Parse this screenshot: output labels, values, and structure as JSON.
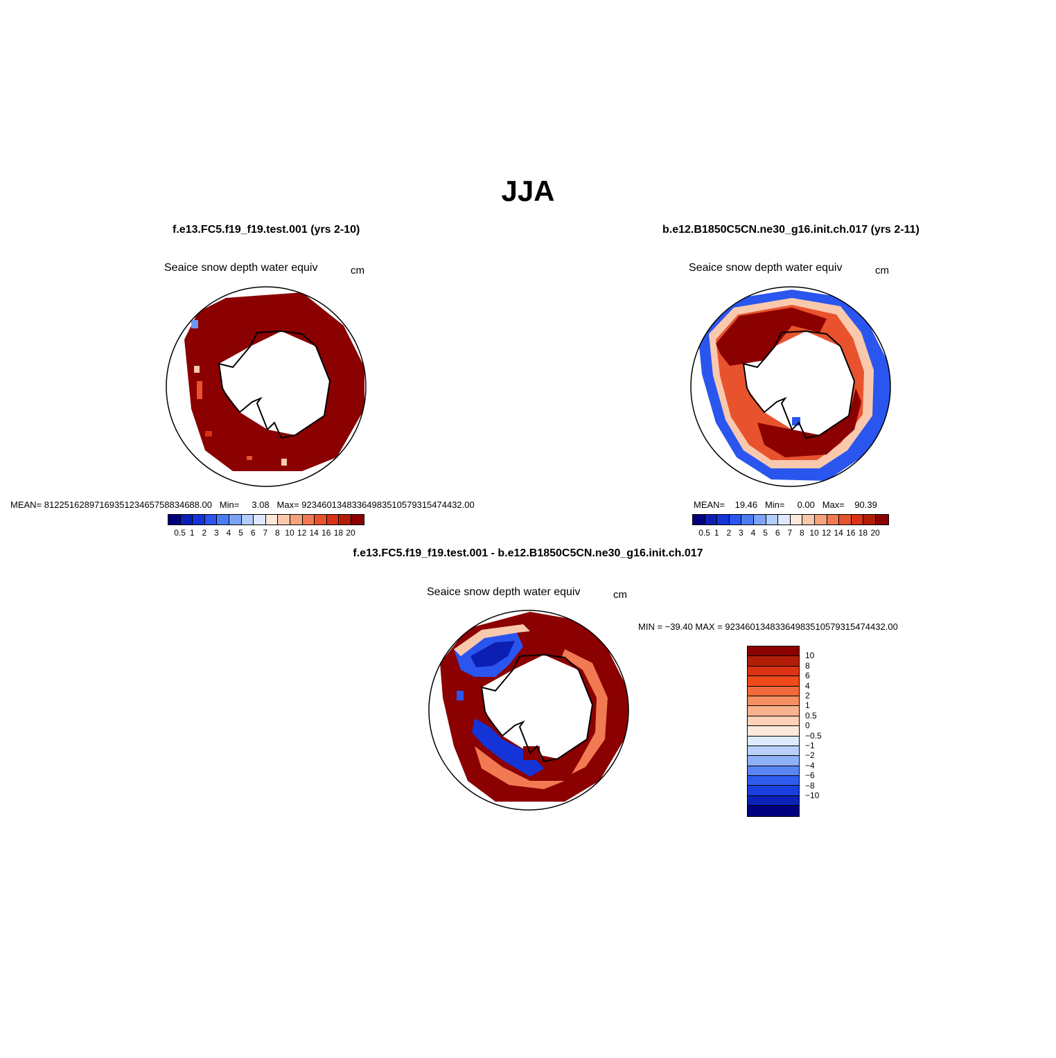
{
  "title": "JJA",
  "panels": [
    {
      "case": "f.e13.FC5.f19_f19.test.001 (yrs 2-10)",
      "variable": "Seaice snow depth water equiv",
      "units": "cm",
      "stats": "MEAN= 81225162897169351234657588346 88.00   Min=     3.08   Max= 92346013483364983510579315474432.00",
      "stats_line": "MEAN= 8122516289716935123465758834688.00   Min=     3.08   Max= 92346013483364983510579315474432.00"
    },
    {
      "case": "b.e12.B1850C5CN.ne30_g16.init.ch.017 (yrs 2-11)",
      "variable": "Seaice snow depth water equiv",
      "units": "cm",
      "stats_line": "MEAN=    19.46   Min=     0.00   Max=    90.39"
    }
  ],
  "diff": {
    "case": "f.e13.FC5.f19_f19.test.001 - b.e12.B1850C5CN.ne30_g16.init.ch.017",
    "variable": "Seaice snow depth water equiv",
    "units": "cm",
    "stats_line": "MIN = −39.40 MAX = 92346013483364983510579315474432.00"
  },
  "colorbar_abs": {
    "colors": [
      "#00007f",
      "#0b1fb3",
      "#1434d8",
      "#2a55ef",
      "#4c7cf4",
      "#7ea2f7",
      "#b3cdfa",
      "#ddeafd",
      "#fde9dc",
      "#f9c9ae",
      "#f4a27b",
      "#f17a52",
      "#e8532e",
      "#d93214",
      "#b21d08",
      "#8b0000"
    ],
    "labels": [
      "0.5",
      "1",
      "2",
      "3",
      "4",
      "5",
      "6",
      "7",
      "8",
      "10",
      "12",
      "14",
      "16",
      "18",
      "20"
    ]
  },
  "colorbar_diff": {
    "colors_top_to_bottom": [
      "#8b0000",
      "#b21d08",
      "#d93214",
      "#f04a1c",
      "#f26a3a",
      "#f58f62",
      "#f8b38e",
      "#fbd2b8",
      "#fde9dc",
      "#ddeafd",
      "#b9d1fa",
      "#8fb0f7",
      "#5b84f3",
      "#2f5cef",
      "#1a3fe0",
      "#0c22b8",
      "#00007f"
    ],
    "labels_top_to_bottom": [
      "10",
      "8",
      "6",
      "4",
      "2",
      "1",
      "0.5",
      "0",
      "−0.5",
      "−1",
      "−2",
      "−4",
      "−6",
      "−8",
      "−10"
    ]
  }
}
